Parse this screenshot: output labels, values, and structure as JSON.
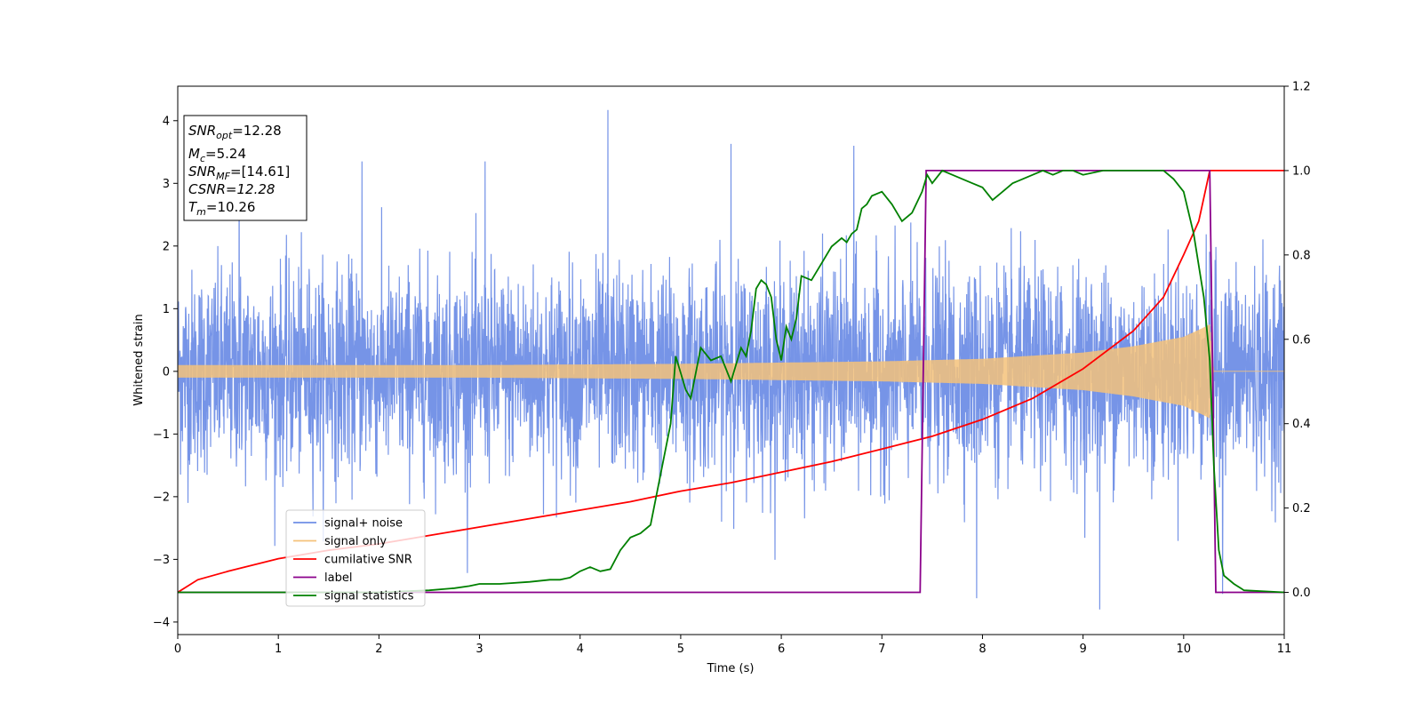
{
  "chart_data": {
    "type": "line",
    "xlabel": "Time (s)",
    "ylabel_left": "Whitened strain",
    "xlim": [
      0,
      11
    ],
    "ylim_left": [
      -4.2,
      4.55
    ],
    "ylim_right": [
      -0.1,
      1.2
    ],
    "x_ticks": [
      0,
      1,
      2,
      3,
      4,
      5,
      6,
      7,
      8,
      9,
      10,
      11
    ],
    "y_ticks_left": [
      -4,
      -3,
      -2,
      -1,
      0,
      1,
      2,
      3,
      4
    ],
    "y_ticks_right": [
      0.0,
      0.2,
      0.4,
      0.6,
      0.8,
      1.0,
      1.2
    ],
    "grid": false,
    "legend_position": "lower-left",
    "info_box": {
      "snr_opt": "=12.28",
      "mc": "=5.24",
      "snr_mf": "=[14.61]",
      "csnr": "CSNR=12.28",
      "tm": "=10.26"
    },
    "series": [
      {
        "name": "signal+ noise",
        "axis": "left",
        "color": "#6f8ee6",
        "kind": "noise",
        "sigma": 0.8,
        "peak_values": [
          3.57,
          3.35,
          3.35,
          4.17,
          3.63,
          3.6,
          -3.62,
          -3.8,
          -3.55
        ]
      },
      {
        "name": "signal only",
        "axis": "left",
        "color": "#f5c27a",
        "kind": "chirp",
        "envelope": {
          "x": [
            0,
            1,
            2,
            3,
            4,
            5,
            6,
            7,
            8,
            9,
            9.5,
            10,
            10.2,
            10.26,
            10.3,
            11
          ],
          "y": [
            0.1,
            0.1,
            0.1,
            0.1,
            0.11,
            0.12,
            0.14,
            0.16,
            0.2,
            0.3,
            0.4,
            0.55,
            0.7,
            0.75,
            0,
            0
          ]
        }
      },
      {
        "name": "cumilative SNR",
        "axis": "right",
        "color": "#ff0000",
        "x": [
          0,
          0.2,
          0.5,
          1,
          1.5,
          2,
          2.5,
          3,
          3.5,
          4,
          4.5,
          5,
          5.5,
          6,
          6.5,
          7,
          7.5,
          8,
          8.5,
          9,
          9.5,
          9.8,
          10,
          10.15,
          10.26,
          11
        ],
        "y": [
          0.0,
          0.03,
          0.05,
          0.08,
          0.1,
          0.115,
          0.135,
          0.155,
          0.175,
          0.195,
          0.215,
          0.24,
          0.26,
          0.285,
          0.31,
          0.34,
          0.37,
          0.41,
          0.46,
          0.53,
          0.62,
          0.7,
          0.8,
          0.88,
          1.0,
          1.0
        ]
      },
      {
        "name": "label",
        "axis": "right",
        "color": "#8b008b",
        "x": [
          0,
          7.38,
          7.44,
          10.26,
          10.32,
          11
        ],
        "y": [
          0,
          0,
          1,
          1,
          0,
          0
        ]
      },
      {
        "name": "signal statistics",
        "axis": "right",
        "color": "#008000",
        "x": [
          0,
          1,
          2,
          2.5,
          2.75,
          2.9,
          3.0,
          3.2,
          3.5,
          3.7,
          3.8,
          3.9,
          4.0,
          4.1,
          4.2,
          4.3,
          4.4,
          4.5,
          4.6,
          4.7,
          4.8,
          4.9,
          4.95,
          5.05,
          5.1,
          5.2,
          5.3,
          5.4,
          5.5,
          5.6,
          5.65,
          5.7,
          5.75,
          5.8,
          5.85,
          5.9,
          5.95,
          6.0,
          6.05,
          6.1,
          6.15,
          6.2,
          6.3,
          6.4,
          6.5,
          6.6,
          6.65,
          6.7,
          6.75,
          6.8,
          6.85,
          6.9,
          7.0,
          7.1,
          7.2,
          7.3,
          7.4,
          7.45,
          7.5,
          7.6,
          7.7,
          7.8,
          7.9,
          8.0,
          8.1,
          8.2,
          8.3,
          8.4,
          8.5,
          8.6,
          8.7,
          8.8,
          8.9,
          9.0,
          9.2,
          9.5,
          9.8,
          9.9,
          10.0,
          10.1,
          10.2,
          10.26,
          10.3,
          10.35,
          10.4,
          10.5,
          10.6,
          11
        ],
        "y": [
          0,
          0,
          0,
          0.005,
          0.01,
          0.015,
          0.02,
          0.02,
          0.025,
          0.03,
          0.03,
          0.035,
          0.05,
          0.06,
          0.05,
          0.055,
          0.1,
          0.13,
          0.14,
          0.16,
          0.28,
          0.4,
          0.56,
          0.48,
          0.46,
          0.58,
          0.55,
          0.56,
          0.5,
          0.58,
          0.56,
          0.62,
          0.72,
          0.74,
          0.73,
          0.7,
          0.6,
          0.55,
          0.63,
          0.6,
          0.65,
          0.75,
          0.74,
          0.78,
          0.82,
          0.84,
          0.83,
          0.85,
          0.86,
          0.91,
          0.92,
          0.94,
          0.95,
          0.92,
          0.88,
          0.9,
          0.95,
          0.99,
          0.97,
          1.0,
          0.99,
          0.98,
          0.97,
          0.96,
          0.93,
          0.95,
          0.97,
          0.98,
          0.99,
          1.0,
          0.99,
          1.0,
          1.0,
          0.99,
          1.0,
          1.0,
          1.0,
          0.98,
          0.95,
          0.85,
          0.7,
          0.55,
          0.3,
          0.1,
          0.04,
          0.02,
          0.005,
          0
        ]
      }
    ]
  }
}
